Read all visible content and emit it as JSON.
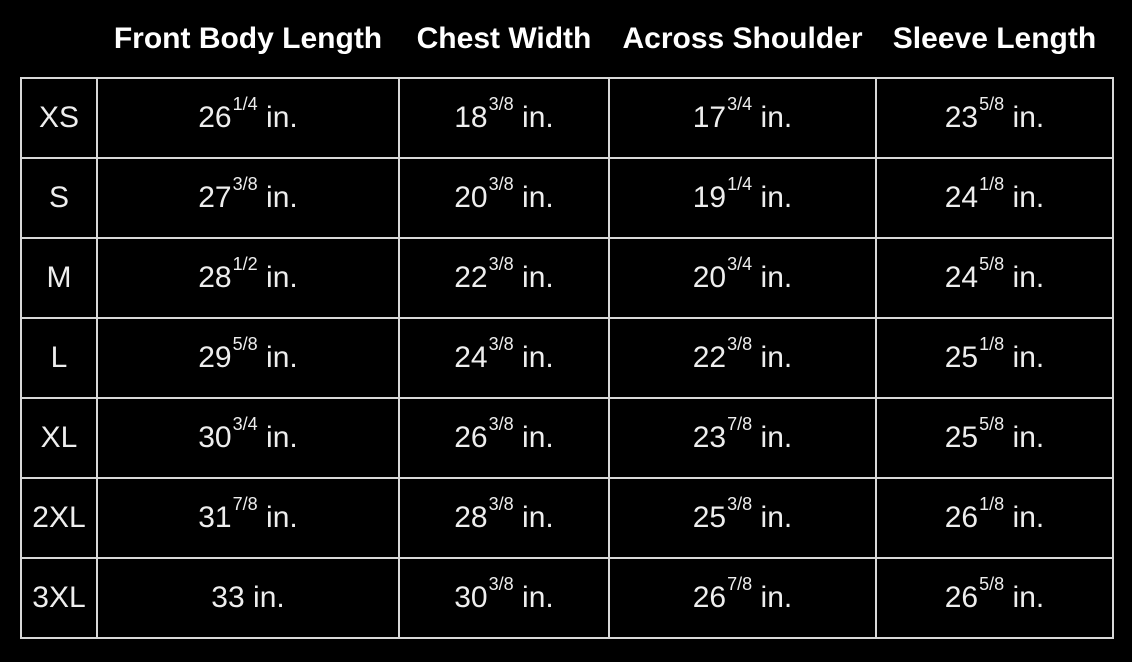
{
  "chart_data": {
    "type": "table",
    "unit": "in.",
    "column_headers": [
      "Front Body Length",
      "Chest Width",
      "Across Shoulder",
      "Sleeve Length"
    ],
    "row_headers": [
      "XS",
      "S",
      "M",
      "L",
      "XL",
      "2XL",
      "3XL"
    ],
    "cells": [
      [
        {
          "whole": "26",
          "fraction": "1/4"
        },
        {
          "whole": "18",
          "fraction": "3/8"
        },
        {
          "whole": "17",
          "fraction": "3/4"
        },
        {
          "whole": "23",
          "fraction": "5/8"
        }
      ],
      [
        {
          "whole": "27",
          "fraction": "3/8"
        },
        {
          "whole": "20",
          "fraction": "3/8"
        },
        {
          "whole": "19",
          "fraction": "1/4"
        },
        {
          "whole": "24",
          "fraction": "1/8"
        }
      ],
      [
        {
          "whole": "28",
          "fraction": "1/2"
        },
        {
          "whole": "22",
          "fraction": "3/8"
        },
        {
          "whole": "20",
          "fraction": "3/4"
        },
        {
          "whole": "24",
          "fraction": "5/8"
        }
      ],
      [
        {
          "whole": "29",
          "fraction": "5/8"
        },
        {
          "whole": "24",
          "fraction": "3/8"
        },
        {
          "whole": "22",
          "fraction": "3/8"
        },
        {
          "whole": "25",
          "fraction": "1/8"
        }
      ],
      [
        {
          "whole": "30",
          "fraction": "3/4"
        },
        {
          "whole": "26",
          "fraction": "3/8"
        },
        {
          "whole": "23",
          "fraction": "7/8"
        },
        {
          "whole": "25",
          "fraction": "5/8"
        }
      ],
      [
        {
          "whole": "31",
          "fraction": "7/8"
        },
        {
          "whole": "28",
          "fraction": "3/8"
        },
        {
          "whole": "25",
          "fraction": "3/8"
        },
        {
          "whole": "26",
          "fraction": "1/8"
        }
      ],
      [
        {
          "whole": "33",
          "fraction": ""
        },
        {
          "whole": "30",
          "fraction": "3/8"
        },
        {
          "whole": "26",
          "fraction": "7/8"
        },
        {
          "whole": "26",
          "fraction": "5/8"
        }
      ]
    ]
  },
  "colors": {
    "background": "#000000",
    "border": "#d8d8d8",
    "header_text": "#ffffff",
    "cell_text": "#eeeeee"
  }
}
